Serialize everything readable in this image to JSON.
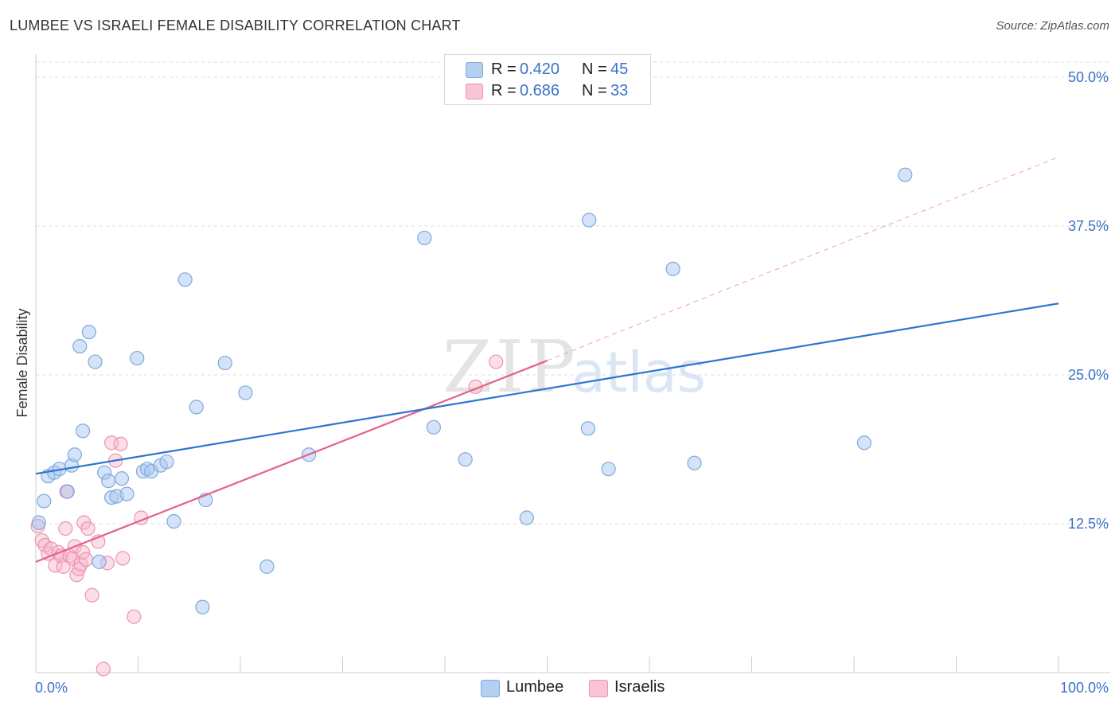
{
  "title": "LUMBEE VS ISRAELI FEMALE DISABILITY CORRELATION CHART",
  "source": "Source: ZipAtlas.com",
  "watermark": {
    "zip": "ZIP",
    "atlas": "atlas"
  },
  "colors": {
    "lumbee_fill": "#a9c8ef",
    "lumbee_stroke": "#7fa9de",
    "lumbee_line": "#2f74d0",
    "israeli_fill": "#f6b6c9",
    "israeli_stroke": "#ee93b0",
    "israeli_line": "#e4608e",
    "axis_label": "#3a72c8",
    "grid": "#dddddd"
  },
  "legend": {
    "rows": [
      {
        "r_label": "R =",
        "r_value": "0.420",
        "n_label": "N =",
        "n_value": "45"
      },
      {
        "r_label": "R =",
        "r_value": "0.686",
        "n_label": "N =",
        "n_value": "33"
      }
    ]
  },
  "bottom_legend": {
    "lumbee": "Lumbee",
    "israelis": "Israelis"
  },
  "chart_data": {
    "type": "scatter",
    "xlabel": "",
    "ylabel": "Female Disability",
    "xlim": [
      0,
      100
    ],
    "ylim": [
      0,
      50
    ],
    "x_tick_labels": [
      "0.0%",
      "100.0%"
    ],
    "y_ticks": [
      12.5,
      25.0,
      37.5,
      50.0
    ],
    "y_tick_labels": [
      "12.5%",
      "25.0%",
      "37.5%",
      "50.0%"
    ],
    "grid": true,
    "legend_position": "top-center",
    "series": [
      {
        "name": "Lumbee",
        "r": 0.42,
        "n": 45,
        "trend": {
          "x": [
            0,
            100
          ],
          "y": [
            16.7,
            31.0
          ],
          "dashed_extension": false
        },
        "points": [
          [
            0.3,
            12.6
          ],
          [
            0.8,
            14.4
          ],
          [
            1.2,
            16.5
          ],
          [
            1.8,
            16.8
          ],
          [
            2.3,
            17.1
          ],
          [
            3.1,
            15.2
          ],
          [
            3.5,
            17.4
          ],
          [
            3.8,
            18.3
          ],
          [
            4.3,
            27.4
          ],
          [
            4.6,
            20.3
          ],
          [
            5.2,
            28.6
          ],
          [
            5.8,
            26.1
          ],
          [
            6.7,
            16.8
          ],
          [
            7.1,
            16.1
          ],
          [
            7.4,
            14.7
          ],
          [
            7.9,
            14.8
          ],
          [
            8.4,
            16.3
          ],
          [
            8.9,
            15.0
          ],
          [
            9.9,
            26.4
          ],
          [
            10.5,
            16.9
          ],
          [
            10.9,
            17.1
          ],
          [
            11.3,
            16.9
          ],
          [
            12.2,
            17.4
          ],
          [
            12.8,
            17.7
          ],
          [
            13.5,
            12.7
          ],
          [
            14.6,
            33.0
          ],
          [
            15.7,
            22.3
          ],
          [
            16.3,
            5.5
          ],
          [
            16.6,
            14.5
          ],
          [
            18.5,
            26.0
          ],
          [
            20.5,
            23.5
          ],
          [
            22.6,
            8.9
          ],
          [
            26.7,
            18.3
          ],
          [
            38.0,
            36.5
          ],
          [
            38.9,
            20.6
          ],
          [
            42.0,
            17.9
          ],
          [
            48.0,
            13.0
          ],
          [
            54.0,
            20.5
          ],
          [
            54.1,
            38.0
          ],
          [
            56.0,
            17.1
          ],
          [
            62.3,
            33.9
          ],
          [
            64.4,
            17.6
          ],
          [
            81.0,
            19.3
          ],
          [
            85.0,
            41.8
          ],
          [
            6.2,
            9.3
          ]
        ]
      },
      {
        "name": "Israelis",
        "r": 0.686,
        "n": 33,
        "trend": {
          "x": [
            0,
            50
          ],
          "y": [
            9.3,
            26.2
          ],
          "dashed_to": [
            100,
            43.3
          ]
        },
        "points": [
          [
            0.2,
            12.3
          ],
          [
            0.6,
            11.1
          ],
          [
            0.9,
            10.7
          ],
          [
            1.2,
            10.0
          ],
          [
            1.5,
            10.4
          ],
          [
            1.9,
            9.0
          ],
          [
            2.2,
            10.1
          ],
          [
            2.5,
            9.8
          ],
          [
            2.7,
            8.9
          ],
          [
            2.9,
            12.1
          ],
          [
            3.0,
            15.2
          ],
          [
            3.3,
            9.8
          ],
          [
            3.6,
            9.6
          ],
          [
            3.8,
            10.6
          ],
          [
            4.0,
            8.2
          ],
          [
            4.2,
            8.7
          ],
          [
            4.4,
            9.1
          ],
          [
            4.6,
            10.1
          ],
          [
            4.7,
            12.6
          ],
          [
            5.1,
            12.1
          ],
          [
            5.5,
            6.5
          ],
          [
            6.1,
            11.0
          ],
          [
            6.6,
            0.3
          ],
          [
            7.0,
            9.2
          ],
          [
            7.4,
            19.3
          ],
          [
            7.8,
            17.8
          ],
          [
            8.3,
            19.2
          ],
          [
            8.5,
            9.6
          ],
          [
            9.6,
            4.7
          ],
          [
            10.3,
            13.0
          ],
          [
            43.0,
            24.0
          ],
          [
            45.0,
            26.1
          ],
          [
            4.9,
            9.5
          ]
        ]
      }
    ]
  }
}
